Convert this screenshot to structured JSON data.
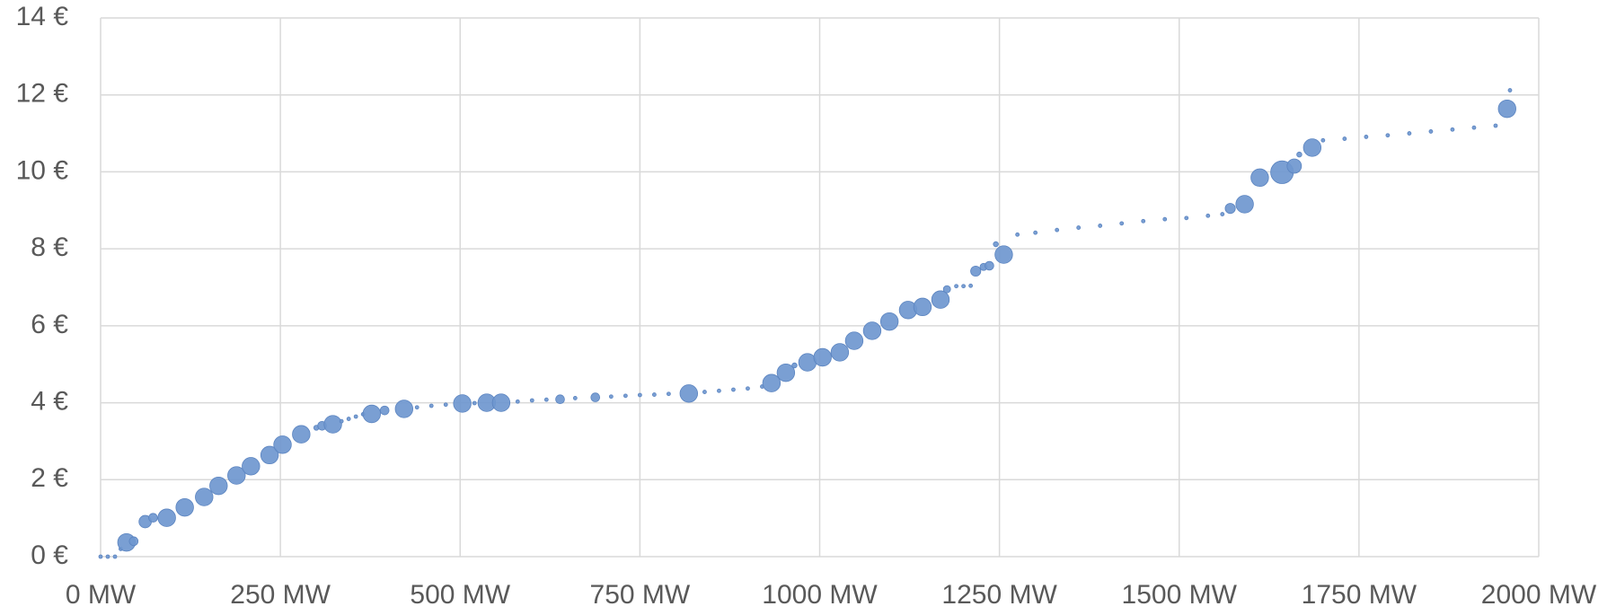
{
  "chart_data": {
    "type": "bubble",
    "color": "#6f97cf",
    "grid": true,
    "x": [
      0,
      10,
      20,
      28,
      36,
      46,
      62,
      73,
      92,
      117,
      144,
      164,
      189,
      209,
      235,
      253,
      279,
      300,
      308,
      323,
      335,
      345,
      355,
      365,
      377,
      395,
      422,
      440,
      460,
      480,
      503,
      520,
      537,
      557,
      580,
      600,
      620,
      639,
      660,
      688,
      710,
      730,
      750,
      770,
      790,
      818,
      840,
      860,
      880,
      900,
      920,
      933,
      953,
      965,
      983,
      1004,
      1028,
      1048,
      1073,
      1097,
      1123,
      1143,
      1168,
      1177,
      1190,
      1200,
      1210,
      1217,
      1228,
      1236,
      1245,
      1256,
      1275,
      1300,
      1330,
      1360,
      1390,
      1420,
      1450,
      1480,
      1510,
      1540,
      1560,
      1571,
      1591,
      1612,
      1643,
      1660,
      1667,
      1685,
      1700,
      1730,
      1760,
      1790,
      1820,
      1850,
      1880,
      1910,
      1940,
      1956,
      1960
    ],
    "values": [
      0,
      0,
      0,
      0.2,
      0.37,
      0.4,
      0.91,
      1.01,
      1.01,
      1.28,
      1.55,
      1.84,
      2.11,
      2.35,
      2.64,
      2.91,
      3.18,
      3.35,
      3.4,
      3.44,
      3.52,
      3.58,
      3.64,
      3.7,
      3.71,
      3.8,
      3.84,
      3.88,
      3.92,
      3.95,
      3.98,
      3.99,
      4.0,
      4.0,
      4.03,
      4.06,
      4.08,
      4.09,
      4.12,
      4.14,
      4.16,
      4.18,
      4.2,
      4.21,
      4.23,
      4.24,
      4.28,
      4.31,
      4.34,
      4.37,
      4.42,
      4.51,
      4.78,
      4.97,
      5.05,
      5.18,
      5.31,
      5.61,
      5.87,
      6.11,
      6.41,
      6.49,
      6.68,
      6.95,
      7.03,
      7.03,
      7.04,
      7.42,
      7.53,
      7.56,
      8.12,
      7.85,
      8.37,
      8.42,
      8.49,
      8.55,
      8.6,
      8.66,
      8.72,
      8.77,
      8.8,
      8.86,
      8.9,
      9.05,
      9.16,
      9.85,
      9.99,
      10.15,
      10.45,
      10.63,
      10.82,
      10.86,
      10.91,
      10.95,
      11.0,
      11.05,
      11.1,
      11.15,
      11.2,
      11.64,
      12.12
    ],
    "sizes": [
      0.25,
      0.25,
      0.25,
      0.25,
      6,
      1.5,
      3,
      1.5,
      6,
      6,
      6,
      6,
      6,
      6,
      6,
      6,
      6,
      0.5,
      1.5,
      6,
      0.25,
      0.25,
      0.25,
      0.25,
      6,
      1.5,
      6,
      0.25,
      0.25,
      0.25,
      6,
      0.25,
      6,
      6,
      0.25,
      0.25,
      0.25,
      1.5,
      0.25,
      1.5,
      0.25,
      0.25,
      0.25,
      0.25,
      0.25,
      6,
      0.25,
      0.25,
      0.25,
      0.25,
      0.25,
      6,
      6,
      0.5,
      6,
      6,
      6,
      6,
      6,
      6,
      6,
      6,
      6,
      1,
      0.25,
      0.25,
      0.25,
      2,
      1,
      1.5,
      0.5,
      6,
      0.25,
      0.25,
      0.25,
      0.25,
      0.25,
      0.25,
      0.25,
      0.25,
      0.25,
      0.25,
      0.25,
      2,
      6,
      6,
      10,
      4,
      0.5,
      6,
      0.25,
      0.25,
      0.25,
      0.25,
      0.25,
      0.25,
      0.25,
      0.25,
      0.25,
      6,
      0.25
    ],
    "xlim": [
      0,
      2000
    ],
    "xticks": [
      {
        "value": 0,
        "label": "0 MW"
      },
      {
        "value": 250,
        "label": "250 MW"
      },
      {
        "value": 500,
        "label": "500 MW"
      },
      {
        "value": 750,
        "label": "750 MW"
      },
      {
        "value": 1000,
        "label": "1000 MW"
      },
      {
        "value": 1250,
        "label": "1250 MW"
      },
      {
        "value": 1500,
        "label": "1500 MW"
      },
      {
        "value": 1750,
        "label": "1750 MW"
      },
      {
        "value": 2000,
        "label": "2000 MW"
      }
    ],
    "ylim": [
      0,
      14
    ],
    "yticks": [
      {
        "value": 0,
        "label": "0 €"
      },
      {
        "value": 2,
        "label": "2 €"
      },
      {
        "value": 4,
        "label": "4 €"
      },
      {
        "value": 6,
        "label": "6 €"
      },
      {
        "value": 8,
        "label": "8 €"
      },
      {
        "value": 10,
        "label": "10 €"
      },
      {
        "value": 12,
        "label": "12 €"
      },
      {
        "value": 14,
        "label": "14 €"
      }
    ]
  }
}
